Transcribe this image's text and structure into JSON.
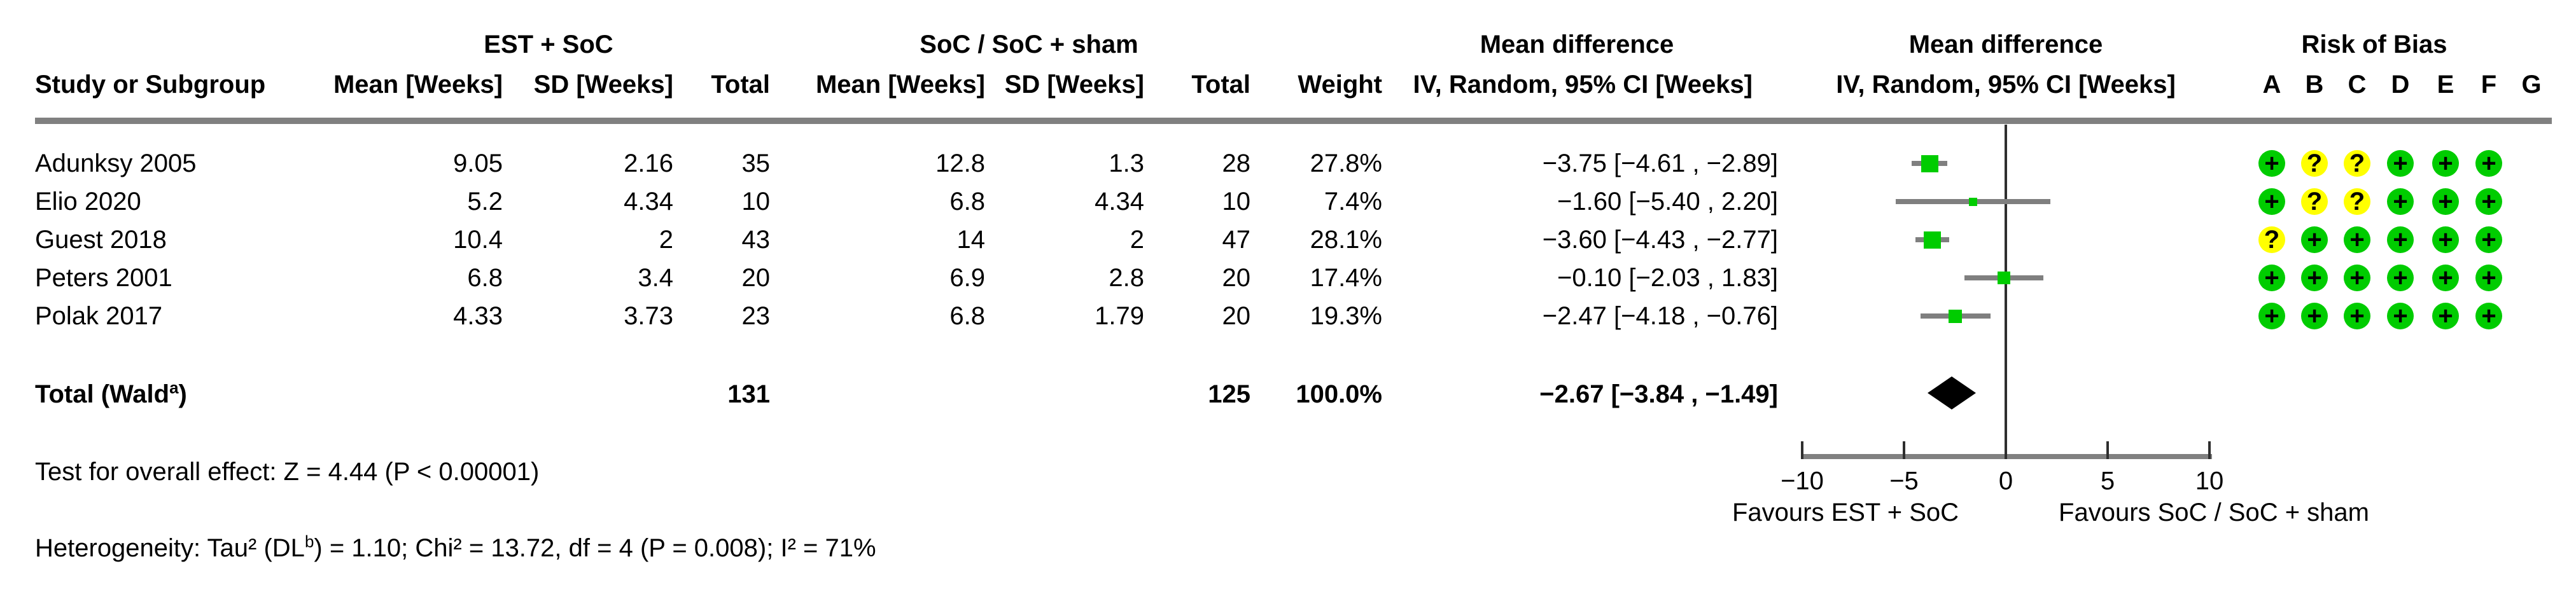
{
  "colors": {
    "rob_low": "#00CC00",
    "rob_unclear": "#FFFF00",
    "marker_green": "#00CC00",
    "line_gray": "#808080",
    "diamond_black": "#000000"
  },
  "rob_symbols": {
    "low": "+",
    "unclear": "?"
  },
  "table": {
    "group_headers": {
      "experimental": "EST + SoC",
      "control": "SoC / SoC + sham",
      "md_text": "Mean difference",
      "md_plot": "Mean difference",
      "rob": "Risk of Bias"
    },
    "column_headers": {
      "study": "Study or Subgroup",
      "mean1": "Mean [Weeks]",
      "sd1": "SD [Weeks]",
      "total1": "Total",
      "mean2": "Mean [Weeks]",
      "sd2": "SD [Weeks]",
      "total2": "Total",
      "weight": "Weight",
      "ci_text": "IV, Random, 95% CI [Weeks]",
      "ci_plot": "IV, Random, 95% CI [Weeks]"
    },
    "studies": [
      {
        "name": "Adunksy 2005",
        "mean1": "9.05",
        "sd1": "2.16",
        "total1": "35",
        "mean2": "12.8",
        "sd2": "1.3",
        "total2": "28",
        "weight": "27.8%",
        "ci_text": "−3.75 [−4.61 , −2.89]"
      },
      {
        "name": "Elio 2020",
        "mean1": "5.2",
        "sd1": "4.34",
        "total1": "10",
        "mean2": "6.8",
        "sd2": "4.34",
        "total2": "10",
        "weight": "7.4%",
        "ci_text": "−1.60 [−5.40 , 2.20]"
      },
      {
        "name": "Guest 2018",
        "mean1": "10.4",
        "sd1": "2",
        "total1": "43",
        "mean2": "14",
        "sd2": "2",
        "total2": "47",
        "weight": "28.1%",
        "ci_text": "−3.60 [−4.43 , −2.77]"
      },
      {
        "name": "Peters 2001",
        "mean1": "6.8",
        "sd1": "3.4",
        "total1": "20",
        "mean2": "6.9",
        "sd2": "2.8",
        "total2": "20",
        "weight": "17.4%",
        "ci_text": "−0.10 [−2.03 , 1.83]"
      },
      {
        "name": "Polak 2017",
        "mean1": "4.33",
        "sd1": "3.73",
        "total1": "23",
        "mean2": "6.8",
        "sd2": "1.79",
        "total2": "20",
        "weight": "19.3%",
        "ci_text": "−2.47 [−4.18 , −0.76]"
      }
    ],
    "total_row": {
      "label_prefix": "Total (Wald",
      "label_sup": "a",
      "label_suffix": ")",
      "total1": "131",
      "total2": "125",
      "weight": "100.0%",
      "ci_text": "−2.67 [−3.84 , −1.49]"
    }
  },
  "risk_of_bias": {
    "domains": [
      "A",
      "B",
      "C",
      "D",
      "E",
      "F",
      "G"
    ],
    "ratings": [
      [
        "low",
        "unclear",
        "unclear",
        "low",
        "low",
        "low",
        ""
      ],
      [
        "low",
        "unclear",
        "unclear",
        "low",
        "low",
        "low",
        ""
      ],
      [
        "unclear",
        "low",
        "low",
        "low",
        "low",
        "low",
        ""
      ],
      [
        "low",
        "low",
        "low",
        "low",
        "low",
        "low",
        ""
      ],
      [
        "low",
        "low",
        "low",
        "low",
        "low",
        "low",
        ""
      ]
    ]
  },
  "footer": {
    "overall_effect": "Test for overall effect: Z = 4.44 (P < 0.00001)",
    "heterogeneity_prefix": "Heterogeneity: Tau² (DL",
    "heterogeneity_sup": "b",
    "heterogeneity_suffix": ") = 1.10; Chi² = 13.72, df = 4 (P = 0.008); I² = 71%"
  },
  "chart_data": {
    "type": "forest",
    "effect_measure": "Mean difference, IV, Random, 95% CI [Weeks]",
    "studies": [
      {
        "name": "Adunksy 2005",
        "mean_exp": 9.05,
        "sd_exp": 2.16,
        "n_exp": 35,
        "mean_ctrl": 12.8,
        "sd_ctrl": 1.3,
        "n_ctrl": 28,
        "weight_pct": 27.8,
        "md": -3.75,
        "ci_low": -4.61,
        "ci_high": -2.89
      },
      {
        "name": "Elio 2020",
        "mean_exp": 5.2,
        "sd_exp": 4.34,
        "n_exp": 10,
        "mean_ctrl": 6.8,
        "sd_ctrl": 4.34,
        "n_ctrl": 10,
        "weight_pct": 7.4,
        "md": -1.6,
        "ci_low": -5.4,
        "ci_high": 2.2
      },
      {
        "name": "Guest 2018",
        "mean_exp": 10.4,
        "sd_exp": 2,
        "n_exp": 43,
        "mean_ctrl": 14,
        "sd_ctrl": 2,
        "n_ctrl": 47,
        "weight_pct": 28.1,
        "md": -3.6,
        "ci_low": -4.43,
        "ci_high": -2.77
      },
      {
        "name": "Peters 2001",
        "mean_exp": 6.8,
        "sd_exp": 3.4,
        "n_exp": 20,
        "mean_ctrl": 6.9,
        "sd_ctrl": 2.8,
        "n_ctrl": 20,
        "weight_pct": 17.4,
        "md": -0.1,
        "ci_low": -2.03,
        "ci_high": 1.83
      },
      {
        "name": "Polak 2017",
        "mean_exp": 4.33,
        "sd_exp": 3.73,
        "n_exp": 23,
        "mean_ctrl": 6.8,
        "sd_ctrl": 1.79,
        "n_ctrl": 20,
        "weight_pct": 19.3,
        "md": -2.47,
        "ci_low": -4.18,
        "ci_high": -0.76
      }
    ],
    "total": {
      "n_exp": 131,
      "n_ctrl": 125,
      "weight_pct": 100.0,
      "md": -2.67,
      "ci_low": -3.84,
      "ci_high": -1.49
    },
    "xlim": [
      -10,
      10
    ],
    "xticks": [
      -10,
      -5,
      0,
      5,
      10
    ],
    "xtick_labels": [
      "−10",
      "−5",
      "0",
      "5",
      "10"
    ],
    "null_line": 0,
    "favours_left": "Favours EST + SoC",
    "favours_right": "Favours SoC / SoC + sham"
  }
}
